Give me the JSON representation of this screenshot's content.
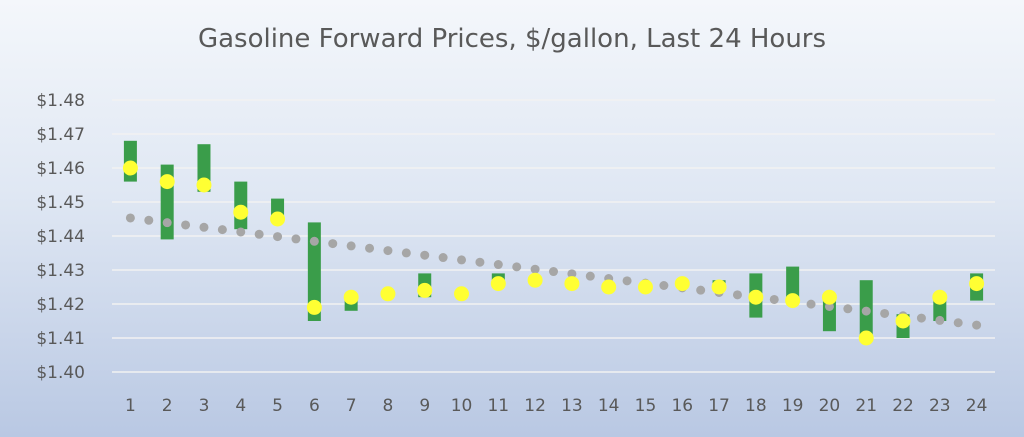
{
  "chart_data": {
    "type": "bar",
    "title": "Gasoline Forward Prices, $/gallon, Last 24 Hours",
    "categories": [
      "1",
      "2",
      "3",
      "4",
      "5",
      "6",
      "7",
      "8",
      "9",
      "10",
      "11",
      "12",
      "13",
      "14",
      "15",
      "16",
      "17",
      "18",
      "19",
      "20",
      "21",
      "22",
      "23",
      "24"
    ],
    "y_ticks": [
      "$1.40",
      "$1.41",
      "$1.42",
      "$1.43",
      "$1.44",
      "$1.45",
      "$1.46",
      "$1.47",
      "$1.48"
    ],
    "ylim": [
      1.4,
      1.48
    ],
    "grid": true,
    "legend": "none",
    "colors": {
      "range_bar": "#3a9d4a",
      "price_marker": "#ffff33",
      "trend": "#a6a6a6",
      "grid": "#f2f2f2",
      "text": "#595959"
    },
    "series": [
      {
        "kind": "range",
        "low": [
          1.456,
          1.439,
          1.453,
          1.442,
          1.444,
          1.415,
          1.418,
          null,
          1.422,
          null,
          1.427,
          null,
          null,
          null,
          null,
          null,
          1.426,
          1.416,
          1.42,
          1.412,
          1.41,
          1.41,
          1.415,
          1.421
        ],
        "high": [
          1.468,
          1.461,
          1.467,
          1.456,
          1.451,
          1.444,
          1.423,
          null,
          1.429,
          null,
          1.429,
          null,
          null,
          null,
          null,
          null,
          1.427,
          1.429,
          1.431,
          1.421,
          1.427,
          1.417,
          1.423,
          1.429
        ]
      },
      {
        "kind": "point",
        "values": [
          1.46,
          1.456,
          1.455,
          1.447,
          1.445,
          1.419,
          1.422,
          1.423,
          1.424,
          1.423,
          1.426,
          1.427,
          1.426,
          1.425,
          1.425,
          1.426,
          1.425,
          1.422,
          1.421,
          1.422,
          1.41,
          1.415,
          1.422,
          1.426
        ]
      },
      {
        "kind": "trend",
        "start": 1.4453,
        "end": 1.4138
      }
    ]
  }
}
